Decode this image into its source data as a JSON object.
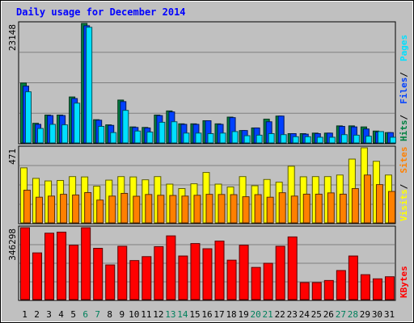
{
  "title": "Daily usage for December 2014",
  "colors": {
    "background": "#C0C0C0",
    "plot_background": "#C0C0C0",
    "title_text": "#0000FF",
    "hits": "#008040",
    "files": "#0040FF",
    "pages": "#00E0FF",
    "visits": "#FFFF00",
    "sites": "#FF8000",
    "kbytes": "#FF0000",
    "weekend_label": "#00805C",
    "weekday_label": "#000000"
  },
  "chart_data": [
    {
      "type": "bar",
      "panel": "hits-files-pages",
      "max_label": "23148",
      "legend": [
        {
          "name": "Hits",
          "color": "#008040"
        },
        {
          "name": "Files",
          "color": "#0040FF"
        },
        {
          "name": "Pages",
          "color": "#00E0FF"
        }
      ],
      "categories": [
        "1",
        "2",
        "3",
        "4",
        "5",
        "6",
        "7",
        "8",
        "9",
        "10",
        "11",
        "12",
        "13",
        "14",
        "15",
        "16",
        "17",
        "18",
        "19",
        "20",
        "21",
        "22",
        "23",
        "24",
        "25",
        "26",
        "27",
        "28",
        "29",
        "30",
        "31"
      ],
      "weekend_days": [
        "6",
        "7",
        "13",
        "14",
        "20",
        "21",
        "27",
        "28"
      ],
      "ylim": [
        0,
        23148
      ],
      "series": [
        {
          "name": "Hits",
          "values": [
            11600,
            3800,
            5400,
            5400,
            8900,
            23148,
            4500,
            3500,
            8300,
            3100,
            3000,
            5400,
            6200,
            3700,
            3700,
            4300,
            3700,
            5000,
            2400,
            2900,
            4600,
            5200,
            1800,
            1800,
            1900,
            1900,
            3300,
            3300,
            3100,
            2300,
            2000
          ]
        },
        {
          "name": "Files",
          "values": [
            11000,
            3600,
            5300,
            5300,
            8600,
            22700,
            4400,
            3400,
            8000,
            3000,
            2900,
            5300,
            6000,
            3600,
            3600,
            4300,
            3600,
            4900,
            2400,
            2900,
            4100,
            5200,
            1800,
            1700,
            1800,
            1900,
            3200,
            3100,
            2700,
            2100,
            2000
          ]
        },
        {
          "name": "Pages",
          "values": [
            9900,
            2800,
            3600,
            3500,
            7700,
            22400,
            3200,
            2000,
            6300,
            2300,
            2100,
            4000,
            4100,
            1900,
            1900,
            1800,
            1900,
            2200,
            1400,
            1500,
            1800,
            1600,
            1200,
            1200,
            1100,
            1100,
            1600,
            1500,
            1300,
            2200,
            1100
          ]
        }
      ]
    },
    {
      "type": "bar",
      "panel": "visits-sites",
      "max_label": "471",
      "legend": [
        {
          "name": "Visits",
          "color": "#FFFF00"
        },
        {
          "name": "Sites",
          "color": "#FF8000"
        }
      ],
      "categories": [
        "1",
        "2",
        "3",
        "4",
        "5",
        "6",
        "7",
        "8",
        "9",
        "10",
        "11",
        "12",
        "13",
        "14",
        "15",
        "16",
        "17",
        "18",
        "19",
        "20",
        "21",
        "22",
        "23",
        "24",
        "25",
        "26",
        "27",
        "28",
        "29",
        "30",
        "31"
      ],
      "ylim": [
        0,
        471
      ],
      "series": [
        {
          "name": "Visits",
          "values": [
            345,
            279,
            263,
            266,
            290,
            288,
            230,
            268,
            290,
            288,
            270,
            290,
            243,
            215,
            245,
            316,
            243,
            225,
            290,
            233,
            272,
            255,
            355,
            289,
            290,
            290,
            300,
            400,
            471,
            386,
            300
          ]
        },
        {
          "name": "Sites",
          "values": [
            205,
            161,
            168,
            179,
            175,
            190,
            143,
            168,
            185,
            167,
            178,
            173,
            172,
            168,
            173,
            179,
            178,
            177,
            164,
            177,
            161,
            189,
            168,
            180,
            180,
            188,
            180,
            215,
            300,
            240,
            197
          ]
        }
      ]
    },
    {
      "type": "bar",
      "panel": "kbytes",
      "max_label": "346298",
      "legend": [
        {
          "name": "KBytes",
          "color": "#FF0000"
        }
      ],
      "categories": [
        "1",
        "2",
        "3",
        "4",
        "5",
        "6",
        "7",
        "8",
        "9",
        "10",
        "11",
        "12",
        "13",
        "14",
        "15",
        "16",
        "17",
        "18",
        "19",
        "20",
        "21",
        "22",
        "23",
        "24",
        "25",
        "26",
        "27",
        "28",
        "29",
        "30",
        "31"
      ],
      "ylim": [
        0,
        346298
      ],
      "series": [
        {
          "name": "KBytes",
          "values": [
            346298,
            225000,
            320000,
            325000,
            262000,
            346298,
            247000,
            167000,
            257000,
            188000,
            207000,
            255000,
            307000,
            210000,
            270000,
            245000,
            282000,
            190000,
            262000,
            155000,
            175000,
            257000,
            302000,
            82000,
            82000,
            92000,
            140000,
            210000,
            120000,
            100000,
            110000
          ]
        }
      ]
    }
  ]
}
